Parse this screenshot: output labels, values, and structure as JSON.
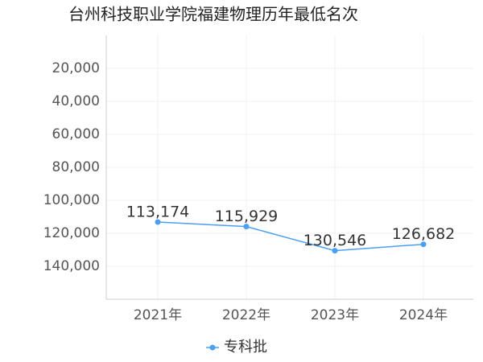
{
  "chart_data": {
    "type": "line",
    "title": "台州科技职业学院福建物理历年最低名次",
    "categories": [
      "2021年",
      "2022年",
      "2023年",
      "2024年"
    ],
    "series": [
      {
        "name": "专科批",
        "color": "#4a9ff5",
        "values": [
          113174,
          115929,
          130546,
          126682
        ],
        "value_labels": [
          "113,174",
          "115,929",
          "130,546",
          "126,682"
        ]
      }
    ],
    "ylim": [
      0,
      160000
    ],
    "yinverted": true,
    "yticks": [
      {
        "value": 20000,
        "label": "20,000"
      },
      {
        "value": 40000,
        "label": "40,000"
      },
      {
        "value": 60000,
        "label": "60,000"
      },
      {
        "value": 80000,
        "label": "80,000"
      },
      {
        "value": 100000,
        "label": "100,000"
      },
      {
        "value": 120000,
        "label": "120,000"
      },
      {
        "value": 140000,
        "label": "140,000"
      }
    ],
    "grid": true,
    "legend": "bottom"
  }
}
